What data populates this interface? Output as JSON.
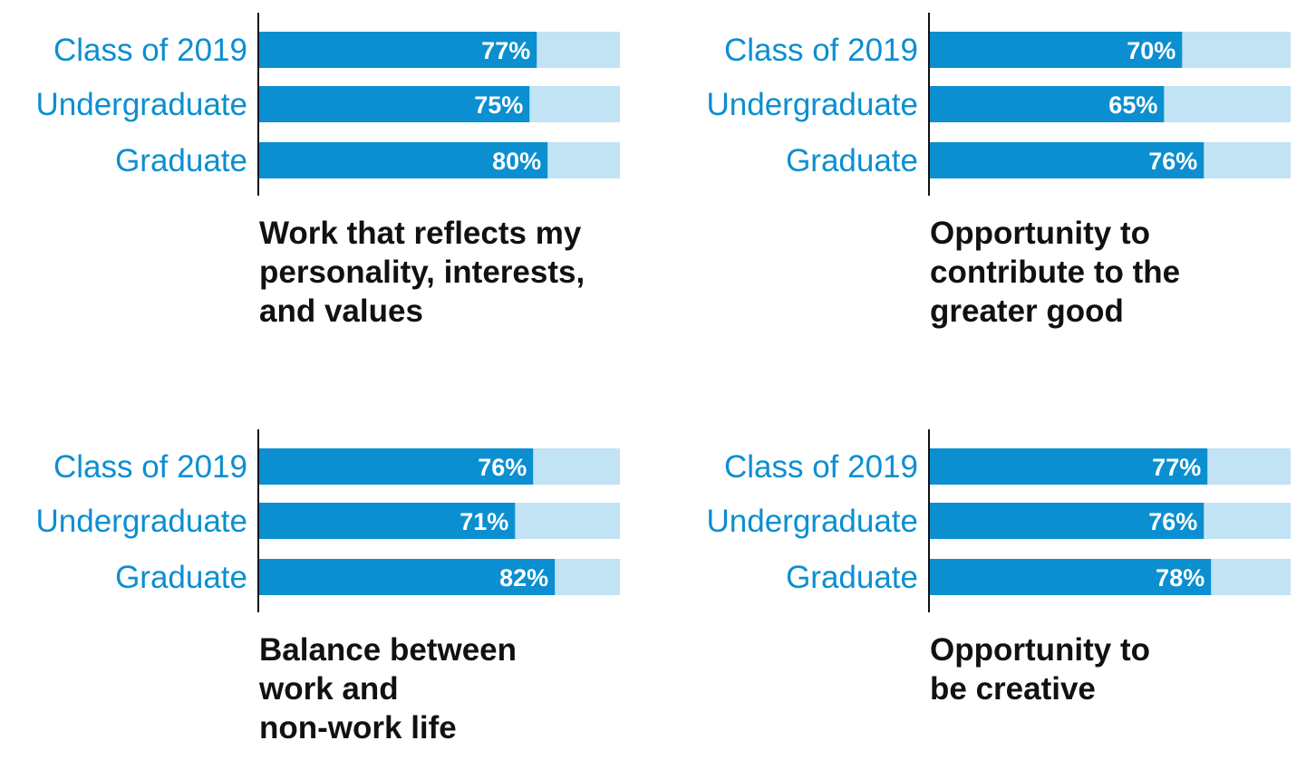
{
  "chart_data": [
    {
      "type": "bar",
      "orientation": "horizontal",
      "stacked_with_remainder": true,
      "title": "Work that reflects my\npersonality, interests,\nand values",
      "categories": [
        "Class of 2019",
        "Undergraduate",
        "Graduate"
      ],
      "values": [
        77,
        75,
        80
      ],
      "value_labels": [
        "77%",
        "75%",
        "80%"
      ],
      "xlim": [
        0,
        100
      ]
    },
    {
      "type": "bar",
      "orientation": "horizontal",
      "stacked_with_remainder": true,
      "title": "Opportunity to\ncontribute to the\ngreater good",
      "categories": [
        "Class of 2019",
        "Undergraduate",
        "Graduate"
      ],
      "values": [
        70,
        65,
        76
      ],
      "value_labels": [
        "70%",
        "65%",
        "76%"
      ],
      "xlim": [
        0,
        100
      ]
    },
    {
      "type": "bar",
      "orientation": "horizontal",
      "stacked_with_remainder": true,
      "title": "Balance between\nwork and\nnon-work life",
      "categories": [
        "Class of 2019",
        "Undergraduate",
        "Graduate"
      ],
      "values": [
        76,
        71,
        82
      ],
      "value_labels": [
        "76%",
        "71%",
        "82%"
      ],
      "xlim": [
        0,
        100
      ]
    },
    {
      "type": "bar",
      "orientation": "horizontal",
      "stacked_with_remainder": true,
      "title": "Opportunity to\nbe creative",
      "categories": [
        "Class of 2019",
        "Undergraduate",
        "Graduate"
      ],
      "values": [
        77,
        76,
        78
      ],
      "value_labels": [
        "77%",
        "76%",
        "78%"
      ],
      "xlim": [
        0,
        100
      ]
    }
  ],
  "colors": {
    "bar": "#0b8fd0",
    "remainder": "#c2e3f4",
    "category_text": "#0b8fd0",
    "value_text": "#ffffff",
    "axis": "#111111",
    "title_text": "#111111"
  }
}
